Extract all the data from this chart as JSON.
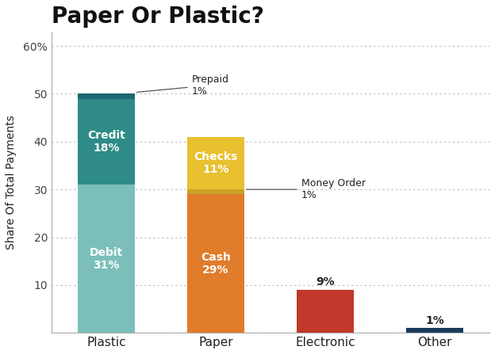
{
  "title": "Paper Or Plastic?",
  "ylabel": "Share Of Total Payments",
  "ylim": [
    0,
    63
  ],
  "yticks": [
    0,
    10,
    20,
    30,
    40,
    50,
    60
  ],
  "ytick_labels": [
    "",
    "10",
    "20",
    "30",
    "40",
    "50",
    "60%"
  ],
  "categories": [
    "Plastic",
    "Paper",
    "Electronic",
    "Other"
  ],
  "bars": [
    {
      "category": "Plastic",
      "segments": [
        {
          "label": "Debit",
          "value": 31,
          "color": "#7CBFBA"
        },
        {
          "label": "Credit",
          "value": 18,
          "color": "#2E8B87"
        },
        {
          "label": "Prepaid",
          "value": 1,
          "color": "#1C6870"
        }
      ]
    },
    {
      "category": "Paper",
      "segments": [
        {
          "label": "Cash",
          "value": 29,
          "color": "#E07C2A"
        },
        {
          "label": "Money Order",
          "value": 1,
          "color": "#C9A426"
        },
        {
          "label": "Checks",
          "value": 11,
          "color": "#E8C030"
        }
      ]
    },
    {
      "category": "Electronic",
      "segments": [
        {
          "label": "Electronic",
          "value": 9,
          "color": "#C0392B"
        }
      ]
    },
    {
      "category": "Other",
      "segments": [
        {
          "label": "Other",
          "value": 1,
          "color": "#1A3A5C"
        }
      ]
    }
  ],
  "background_color": "#FFFFFF",
  "grid_color": "#BBBBBB",
  "title_fontsize": 20,
  "label_fontsize": 10,
  "tick_fontsize": 10,
  "ylabel_fontsize": 10,
  "bar_width": 0.52
}
